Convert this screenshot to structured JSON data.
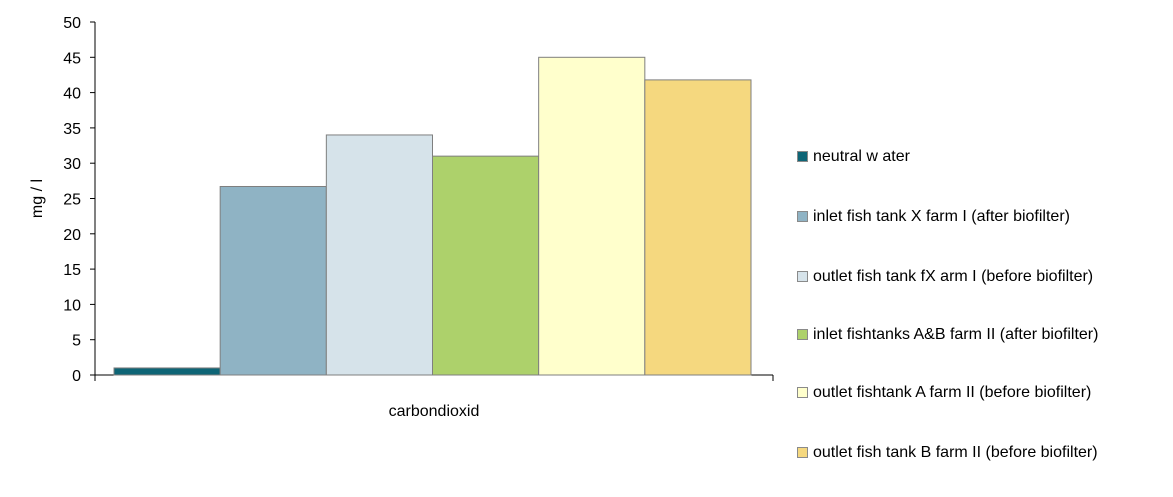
{
  "chart_data": {
    "type": "bar",
    "categories": [
      "carbondioxid"
    ],
    "ylabel": "mg / l",
    "xlabel": "",
    "ylim": [
      0,
      50
    ],
    "yticks": [
      0,
      5,
      10,
      15,
      20,
      25,
      30,
      35,
      40,
      45,
      50
    ],
    "grid": false,
    "legend_position": "right",
    "series": [
      {
        "name": "neutral  w ater",
        "values": [
          1
        ],
        "color": "#0e6576"
      },
      {
        "name": "inlet fish tank X farm I (after biofilter)",
        "values": [
          26.7
        ],
        "color": "#8fb3c4"
      },
      {
        "name": "outlet fish tank fX arm I (before biofilter)",
        "values": [
          34
        ],
        "color": "#d6e3ea"
      },
      {
        "name": "inlet fishtanks A&B  farm II (after biofilter)",
        "values": [
          31
        ],
        "color": "#add16b"
      },
      {
        "name": "outlet fishtank A  farm II (before biofilter)",
        "values": [
          45
        ],
        "color": "#ffffcc"
      },
      {
        "name": "outlet fish tank B farm II (before biofilter)",
        "values": [
          41.8
        ],
        "color": "#f5d87f"
      }
    ]
  }
}
